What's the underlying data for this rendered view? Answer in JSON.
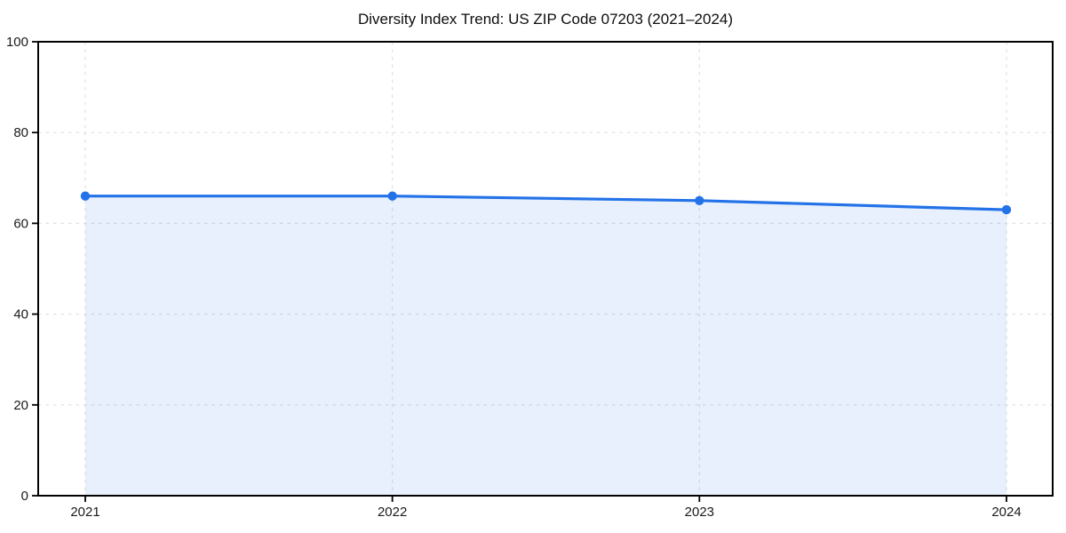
{
  "chart_data": {
    "type": "line",
    "title": "Diversity Index Trend: US ZIP Code 07203 (2021–2024)",
    "categories": [
      "2021",
      "2022",
      "2023",
      "2024"
    ],
    "series": [
      {
        "name": "Diversity Index",
        "values": [
          66,
          66,
          65,
          63
        ]
      }
    ],
    "xlabel": "",
    "ylabel": "",
    "ylim": [
      0,
      100
    ],
    "yticks": [
      0,
      20,
      40,
      60,
      80,
      100
    ],
    "grid": "dashed-both-axes",
    "legend": "none",
    "area_fill": true,
    "colors": {
      "line": "#2372e8",
      "marker": "#2372e8",
      "fill": "rgba(37, 114, 232, 0.11)",
      "grid": "#e0e0e0",
      "spine": "#000000",
      "tick_text": "#1a1a1a",
      "title_text": "#0d0d0d",
      "background": "#ffffff"
    }
  }
}
